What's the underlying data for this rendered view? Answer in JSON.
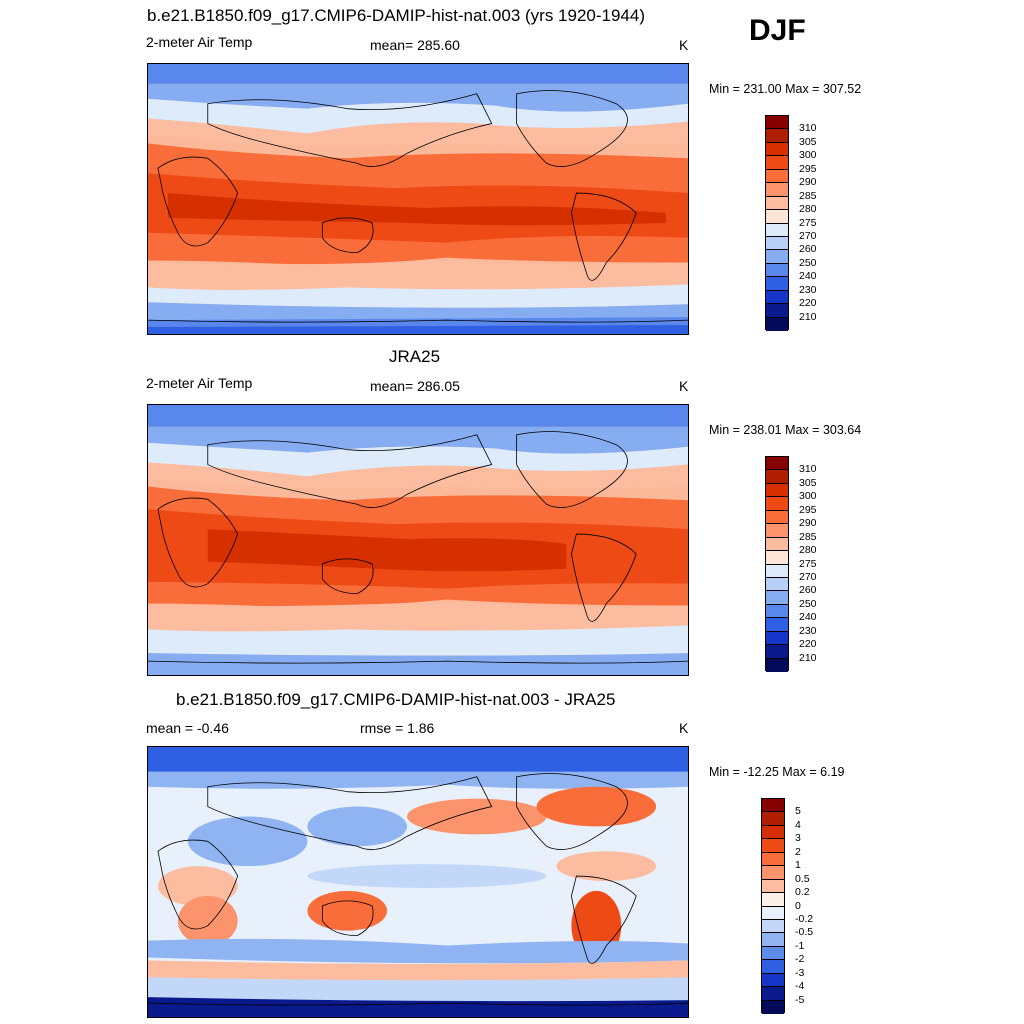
{
  "season": "DJF",
  "panels": [
    {
      "title": "b.e21.B1850.f09_g17.CMIP6-DAMIP-hist-nat.003 (yrs 1920-1944)",
      "left_label": "2-meter Air Temp",
      "center_label": "mean= 285.60",
      "units": "K",
      "minmax": "Min = 231.00 Max = 307.52",
      "colorbar_labels": [
        "310",
        "305",
        "300",
        "295",
        "290",
        "285",
        "280",
        "275",
        "270",
        "260",
        "250",
        "240",
        "230",
        "220",
        "210"
      ]
    },
    {
      "title": "JRA25",
      "left_label": "2-meter Air Temp",
      "center_label": "mean= 286.05",
      "units": "K",
      "minmax": "Min = 238.01 Max = 303.64",
      "colorbar_labels": [
        "310",
        "305",
        "300",
        "295",
        "290",
        "285",
        "280",
        "275",
        "270",
        "260",
        "250",
        "240",
        "230",
        "220",
        "210"
      ]
    },
    {
      "title": "b.e21.B1850.f09_g17.CMIP6-DAMIP-hist-nat.003 - JRA25",
      "left_label": "mean =  -0.46",
      "center_label": "rmse =   1.86",
      "units": "K",
      "minmax": "Min = -12.25 Max =   6.19",
      "colorbar_labels": [
        "5",
        "4",
        "3",
        "2",
        "1",
        "0.5",
        "0.2",
        "0",
        "-0.2",
        "-0.5",
        "-1",
        "-2",
        "-3",
        "-4",
        "-5"
      ]
    }
  ],
  "colors": {
    "temp_scale": [
      "#870000",
      "#b01e00",
      "#d63000",
      "#ee4a16",
      "#f96d3a",
      "#fb946c",
      "#fcbca0",
      "#fde6d6",
      "#deebfb",
      "#b6d0f7",
      "#86adf1",
      "#5a87ec",
      "#2f5fe3",
      "#1535c8",
      "#0a1a8c",
      "#040a5a"
    ],
    "diff_scale": [
      "#870000",
      "#b01e00",
      "#d63000",
      "#ee4a16",
      "#f96d3a",
      "#fb946c",
      "#fcbca0",
      "#fdf0e8",
      "#e8f0fc",
      "#c3d8f8",
      "#8fb4f1",
      "#5c8bec",
      "#2f5fe3",
      "#1535c8",
      "#0a1a8c",
      "#040a5a"
    ]
  }
}
